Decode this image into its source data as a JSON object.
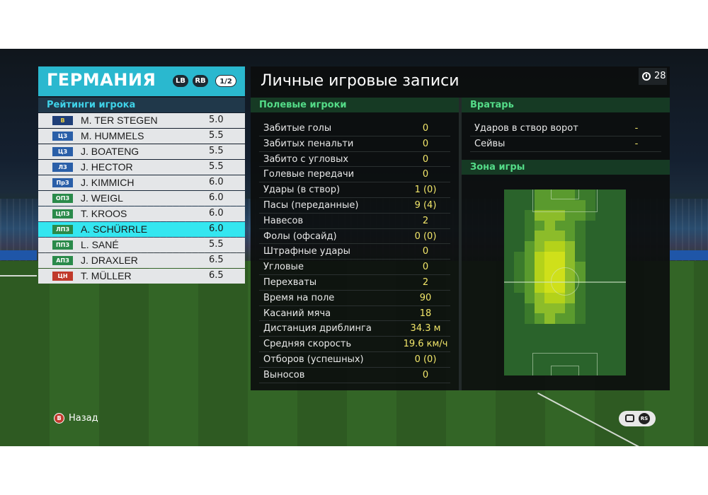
{
  "team": {
    "name": "ГЕРМАНИЯ",
    "pill_lb": "LB",
    "pill_rb": "RB",
    "page": "1/2"
  },
  "ratings_title": "Рейтинги игрока",
  "players": [
    {
      "pos": "В",
      "name": "M. TER STEGEN",
      "rating": "5.0",
      "color": "#1f3f78",
      "text": "#f0d240"
    },
    {
      "pos": "ЦЗ",
      "name": "M. HUMMELS",
      "rating": "5.5",
      "color": "#2a5fa8",
      "text": "#ffffff"
    },
    {
      "pos": "ЦЗ",
      "name": "J. BOATENG",
      "rating": "5.5",
      "color": "#2a5fa8",
      "text": "#ffffff"
    },
    {
      "pos": "ЛЗ",
      "name": "J. HECTOR",
      "rating": "5.5",
      "color": "#2a5fa8",
      "text": "#ffffff"
    },
    {
      "pos": "ПрЗ",
      "name": "J. KIMMICH",
      "rating": "6.0",
      "color": "#2a5fa8",
      "text": "#ffffff"
    },
    {
      "pos": "ОПЗ",
      "name": "J. WEIGL",
      "rating": "6.0",
      "color": "#2a8a4a",
      "text": "#ffffff"
    },
    {
      "pos": "ЦПЗ",
      "name": "T. KROOS",
      "rating": "6.0",
      "color": "#2a8a4a",
      "text": "#ffffff"
    },
    {
      "pos": "ЛПЗ",
      "name": "A. SCHÜRRLE",
      "rating": "6.0",
      "color": "#2a8a4a",
      "text": "#ffffff",
      "selected": true
    },
    {
      "pos": "ППЗ",
      "name": "L. SANÉ",
      "rating": "5.5",
      "color": "#2a8a4a",
      "text": "#ffffff"
    },
    {
      "pos": "АПЗ",
      "name": "J. DRAXLER",
      "rating": "6.5",
      "color": "#2a8a4a",
      "text": "#ffffff"
    },
    {
      "pos": "ЦН",
      "name": "T. MÜLLER",
      "rating": "6.5",
      "color": "#c0392b",
      "text": "#ffffff"
    }
  ],
  "main_title": "Личные игровые записи",
  "timer": "28",
  "field_section": "Полевые игроки",
  "field_stats": [
    {
      "label": "Забитые голы",
      "value": "0"
    },
    {
      "label": "Забитых пенальти",
      "value": "0"
    },
    {
      "label": "Забито с угловых",
      "value": "0"
    },
    {
      "label": "Голевые передачи",
      "value": "0"
    },
    {
      "label": "Удары (в створ)",
      "value": "1 (0)"
    },
    {
      "label": "Пасы (переданные)",
      "value": "9 (4)"
    },
    {
      "label": "Навесов",
      "value": "2"
    },
    {
      "label": "Фолы (офсайд)",
      "value": "0 (0)"
    },
    {
      "label": "Штрафные удары",
      "value": "0"
    },
    {
      "label": "Угловые",
      "value": "0"
    },
    {
      "label": "Перехваты",
      "value": "2"
    },
    {
      "label": "Время на поле",
      "value": "90"
    },
    {
      "label": "Касаний мяча",
      "value": "18"
    },
    {
      "label": "Дистанция дриблинга",
      "value": "34.3 м"
    },
    {
      "label": "Средняя скорость",
      "value": "19.6 км/ч"
    },
    {
      "label": "Отборов (успешных)",
      "value": "0 (0)"
    },
    {
      "label": "Выносов",
      "value": "0"
    }
  ],
  "gk_section": "Вратарь",
  "gk_stats": [
    {
      "label": "Ударов в створ ворот",
      "value": "-"
    },
    {
      "label": "Сейвы",
      "value": "-"
    }
  ],
  "zone_section": "Зона игры",
  "footer": {
    "back_button": "B",
    "back_label": "Назад",
    "rs_label": "RS"
  },
  "colors": {
    "accent": "#2ab8cf",
    "selected_row": "#34e6f0",
    "section_text": "#54dc88",
    "value_text": "#f2e66a"
  }
}
